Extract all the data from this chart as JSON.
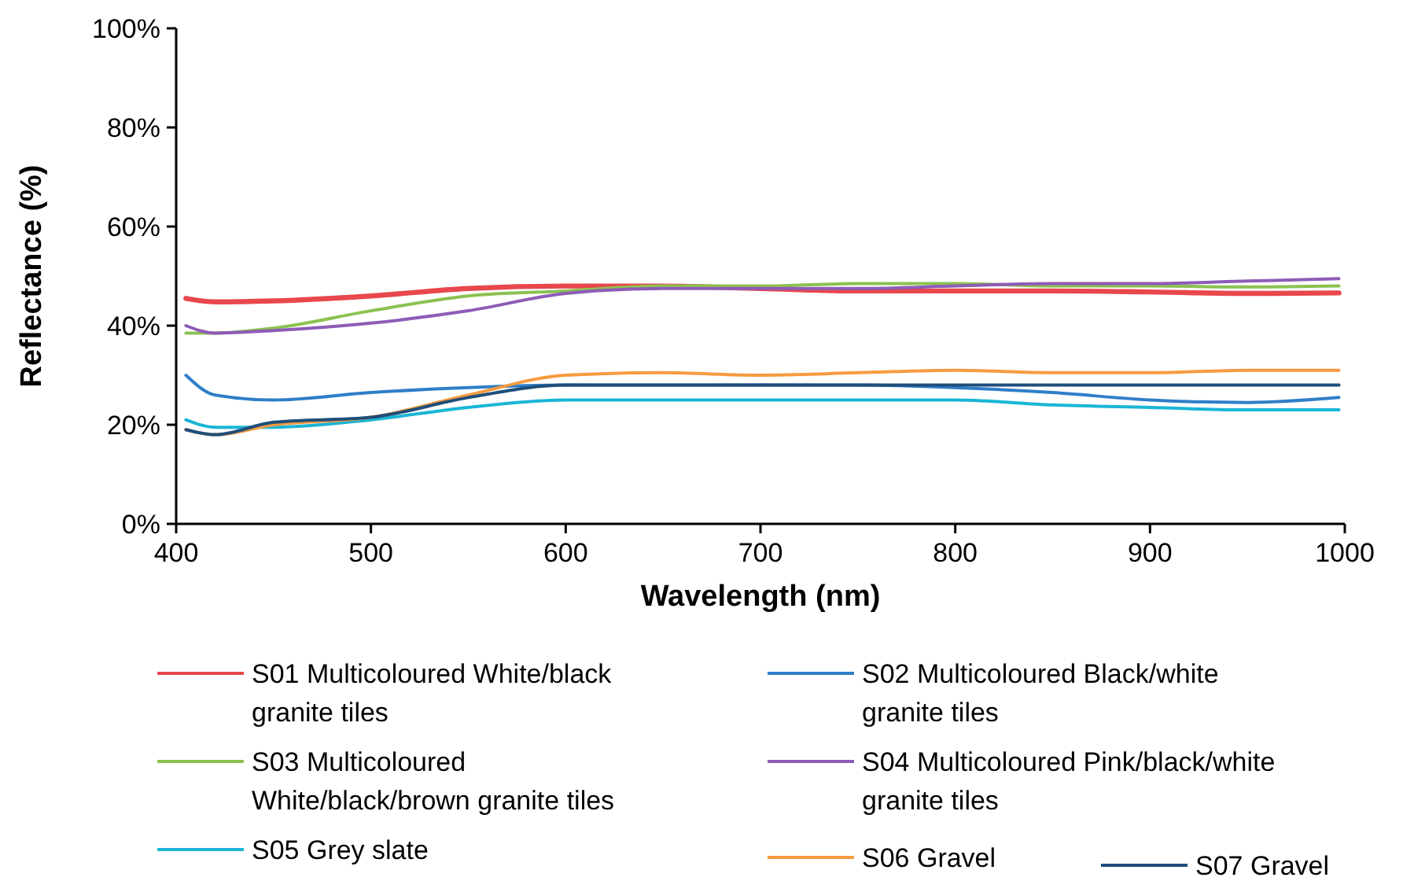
{
  "chart_data": {
    "type": "line",
    "xlabel": "Wavelength (nm)",
    "ylabel": "Reflectance (%)",
    "x": [
      405,
      420,
      450,
      500,
      550,
      600,
      650,
      700,
      750,
      800,
      850,
      900,
      950,
      997
    ],
    "xlim": [
      400,
      1000
    ],
    "xticks": [
      400,
      500,
      600,
      700,
      800,
      900,
      1000
    ],
    "ylim": [
      0,
      100
    ],
    "yticks": [
      {
        "value": 0,
        "label": "0%"
      },
      {
        "value": 20,
        "label": "20%"
      },
      {
        "value": 40,
        "label": "40%"
      },
      {
        "value": 60,
        "label": "60%"
      },
      {
        "value": 80,
        "label": "80%"
      },
      {
        "value": 100,
        "label": "100%"
      }
    ],
    "grid": false,
    "legend": "bottom",
    "marker": "none",
    "line_style": "solid",
    "series": [
      {
        "name": "S01 Multicoloured White/black granite tiles",
        "color": "#e8474c",
        "values": [
          45.5,
          44.8,
          45,
          46,
          47.5,
          48,
          48,
          47.5,
          47,
          47,
          47,
          46.8,
          46.5,
          46.6
        ]
      },
      {
        "name": "S02 Multicoloured Black/white granite tiles",
        "color": "#2f7ec8",
        "values": [
          30,
          26,
          25,
          26.5,
          27.5,
          28,
          28,
          28,
          28,
          27.5,
          26.5,
          25,
          24.5,
          25.5
        ]
      },
      {
        "name": "S03 Multicoloured White/black/brown granite tiles",
        "color": "#8cc151",
        "values": [
          38.5,
          38.5,
          39.5,
          43,
          46,
          47,
          48,
          48,
          48.5,
          48.5,
          48,
          48,
          47.8,
          48
        ]
      },
      {
        "name": "S04 Multicoloured Pink/black/white granite tiles",
        "color": "#8e5cb8",
        "values": [
          40,
          38.5,
          39,
          40.5,
          43,
          46.5,
          47.5,
          47.5,
          47.5,
          48,
          48.5,
          48.5,
          49,
          49.5
        ]
      },
      {
        "name": "S05 Grey slate",
        "color": "#1ab5d5",
        "values": [
          21,
          19.5,
          19.5,
          21,
          23.5,
          25,
          25,
          25,
          25,
          25,
          24,
          23.5,
          23,
          23
        ]
      },
      {
        "name": "S06 Gravel",
        "color": "#f79a3e",
        "values": [
          19,
          18,
          20,
          21.5,
          26,
          30,
          30.5,
          30,
          30.5,
          31,
          30.5,
          30.5,
          31,
          31
        ]
      },
      {
        "name": "S07 Gravel",
        "color": "#1f4e7a",
        "values": [
          19,
          18,
          20.5,
          21.5,
          25.5,
          28,
          28,
          28,
          28,
          28,
          28,
          28,
          28,
          28
        ]
      }
    ]
  }
}
